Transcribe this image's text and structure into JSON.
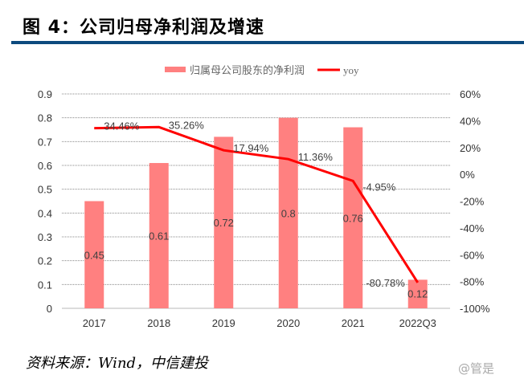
{
  "header": {
    "title": "图 4：公司归母净利润及增速"
  },
  "footer": {
    "source": "资料来源：Wind，中信建投",
    "watermark": "@管是"
  },
  "chart_data": {
    "type": "bar+line",
    "categories": [
      "2017",
      "2018",
      "2019",
      "2020",
      "2021",
      "2022Q3"
    ],
    "series": [
      {
        "name": "归属母公司股东的净利润",
        "type": "bar",
        "axis": "left",
        "color": "#ff8080",
        "values": [
          0.45,
          0.61,
          0.72,
          0.8,
          0.76,
          0.12
        ],
        "labels": [
          "0.45",
          "0.61",
          "0.72",
          "0.8",
          "0.76",
          "0.12"
        ]
      },
      {
        "name": "yoy",
        "type": "line",
        "axis": "right",
        "color": "#ff0000",
        "values": [
          34.46,
          35.26,
          17.94,
          11.36,
          -4.95,
          -80.78
        ],
        "labels": [
          "34.46%",
          "35.26%",
          "17.94%",
          "11.36%",
          "-4.95%",
          "-80.78%"
        ]
      }
    ],
    "left_axis": {
      "ylim": [
        0,
        0.9
      ],
      "ticks": [
        "0",
        "0.1",
        "0.2",
        "0.3",
        "0.4",
        "0.5",
        "0.6",
        "0.7",
        "0.8",
        "0.9"
      ]
    },
    "right_axis": {
      "ylim": [
        -100,
        60
      ],
      "ticks": [
        "-100%",
        "-80%",
        "-60%",
        "-40%",
        "-20%",
        "0%",
        "20%",
        "40%",
        "60%"
      ]
    },
    "grid": true,
    "legend": "top"
  }
}
